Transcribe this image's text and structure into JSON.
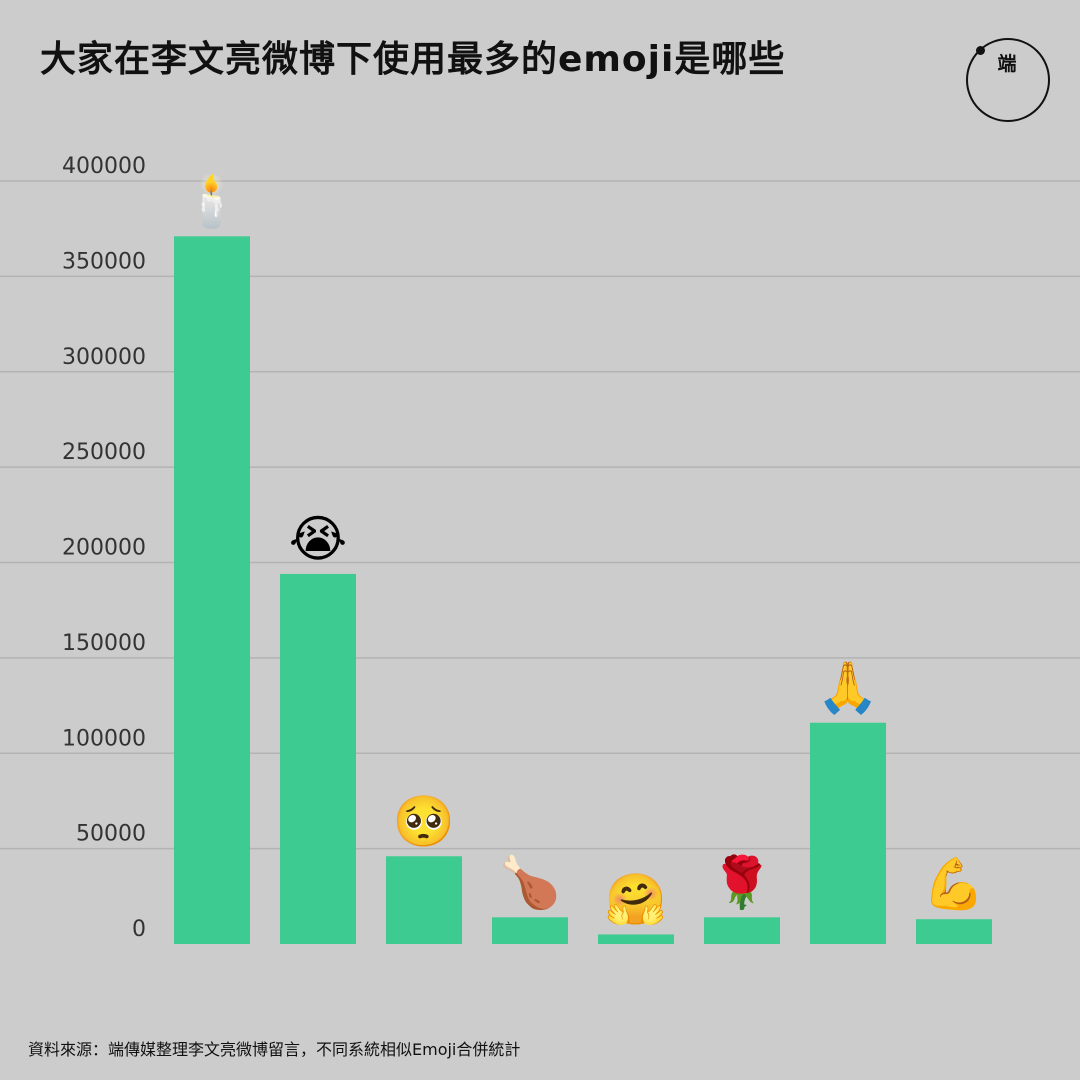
{
  "title": "大家在李文亮微博下使用最多的emoji是哪些",
  "logo": {
    "text": "端"
  },
  "source": "資料來源：端傳媒整理李文亮微博留言，不同系統相似Emoji合併統計",
  "colors": {
    "background": "#cccccc",
    "bar": "#3dcb91",
    "grid": "#b3b3b3",
    "tick": "#333333"
  },
  "chart_data": {
    "type": "bar",
    "categories": [
      "🕯️",
      "😭",
      "🥺",
      "🍗",
      "🤗",
      "🌹",
      "🙏",
      "💪"
    ],
    "icon_names": [
      "candle-icon",
      "loudly-crying-face-icon",
      "pleading-face-icon",
      "poultry-leg-icon",
      "hugging-face-icon",
      "rose-icon",
      "folded-hands-icon",
      "flexed-biceps-icon"
    ],
    "values": [
      371000,
      194000,
      46000,
      14000,
      5000,
      14000,
      116000,
      13000
    ],
    "ylim": [
      0,
      400000
    ],
    "yticks": [
      0,
      50000,
      100000,
      150000,
      200000,
      250000,
      300000,
      350000,
      400000
    ],
    "ytick_labels": [
      "0",
      "50000",
      "100000",
      "150000",
      "200000",
      "250000",
      "300000",
      "350000",
      "400000"
    ],
    "xlabel": "",
    "ylabel": "",
    "grid": true
  }
}
